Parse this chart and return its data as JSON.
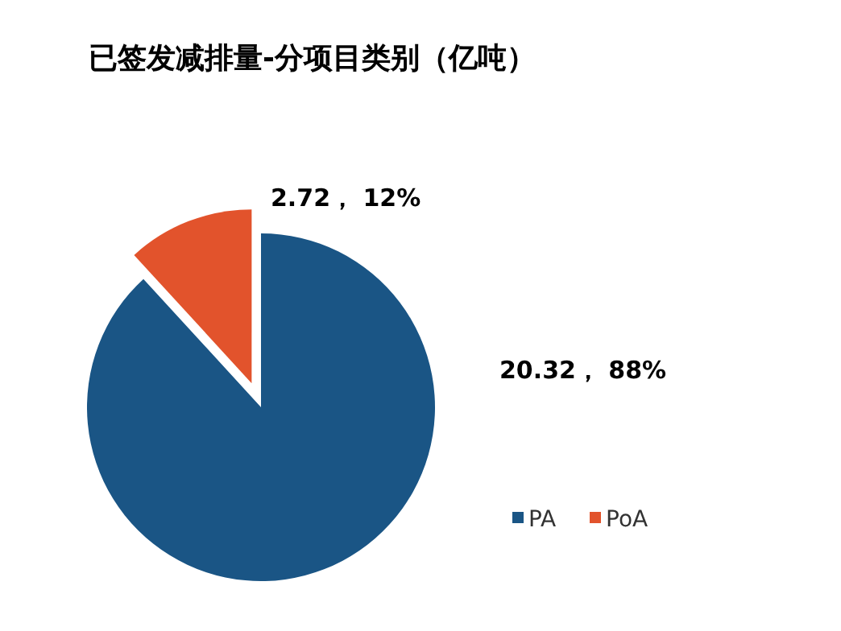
{
  "chart_data": {
    "type": "pie",
    "title": "已签发减排量-分项目类别（亿吨）",
    "categories": [
      "PA",
      "PoA"
    ],
    "values": [
      20.32,
      2.72
    ],
    "colors": [
      "#1a5585",
      "#e2532c"
    ],
    "value_labels": [
      "20.32， 88%",
      "2.72， 12%"
    ],
    "legend": "bottom right"
  }
}
